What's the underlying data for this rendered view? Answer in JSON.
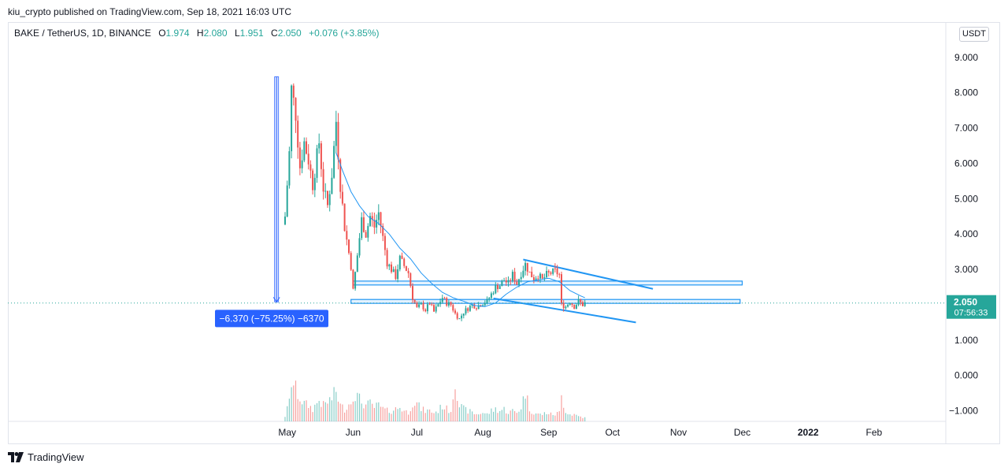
{
  "header": {
    "published": "kiu_crypto published on TradingView.com, Sep 18, 2021 16:03 UTC"
  },
  "legend": {
    "symbol": "BAKE / TetherUS, 1D, BINANCE",
    "open_key": "O",
    "open": "1.974",
    "high_key": "H",
    "high": "2.080",
    "low_key": "L",
    "low": "1.951",
    "close_key": "C",
    "close": "2.050",
    "change": "+0.076 (+3.85%)"
  },
  "currency_unit": "USDT",
  "footer": {
    "brand": "TradingView"
  },
  "colors": {
    "up": "#26a69a",
    "down": "#ef5350",
    "drawing": "#2196f3",
    "measure": "#2962ff",
    "ma": "#2196f3",
    "grid": "#e0e3eb",
    "price_tag": "#26a69a"
  },
  "chart_data": {
    "type": "candlestick",
    "symbol": "BAKE / TetherUS",
    "interval": "1D",
    "exchange": "BINANCE",
    "y_ticks": [
      "9.000",
      "8.000",
      "7.000",
      "6.000",
      "5.000",
      "4.000",
      "3.000",
      "2.000",
      "1.000",
      "0.000",
      "−1.000"
    ],
    "y_tick_values": [
      9,
      8,
      7,
      6,
      5,
      4,
      3,
      2,
      1,
      0,
      -1
    ],
    "ylim": [
      -1.3,
      10.0
    ],
    "x_ticks": [
      "May",
      "Jun",
      "Jul",
      "Aug",
      "Sep",
      "Oct",
      "Nov",
      "Dec",
      "2022",
      "Feb"
    ],
    "x_tick_dates": [
      "2021-05-01",
      "2021-06-01",
      "2021-07-01",
      "2021-08-01",
      "2021-09-01",
      "2021-10-01",
      "2021-11-01",
      "2021-12-01",
      "2022-01-01",
      "2022-02-01"
    ],
    "first_candle_date": "2021-04-30",
    "last_price": "2.050",
    "countdown": "07:56:33",
    "close_path": [
      {
        "date": "2021-04-30",
        "value": 4.5
      },
      {
        "date": "2021-05-02",
        "value": 6.3
      },
      {
        "date": "2021-05-03",
        "value": 8.1
      },
      {
        "date": "2021-05-05",
        "value": 7.4
      },
      {
        "date": "2021-05-07",
        "value": 5.9
      },
      {
        "date": "2021-05-09",
        "value": 6.6
      },
      {
        "date": "2021-05-11",
        "value": 6.1
      },
      {
        "date": "2021-05-13",
        "value": 5.4
      },
      {
        "date": "2021-05-16",
        "value": 6.6
      },
      {
        "date": "2021-05-18",
        "value": 5.3
      },
      {
        "date": "2021-05-20",
        "value": 4.8
      },
      {
        "date": "2021-05-22",
        "value": 5.7
      },
      {
        "date": "2021-05-24",
        "value": 7.2
      },
      {
        "date": "2021-05-26",
        "value": 5.4
      },
      {
        "date": "2021-05-28",
        "value": 4.2
      },
      {
        "date": "2021-05-31",
        "value": 3.1
      },
      {
        "date": "2021-06-01",
        "value": 2.4
      },
      {
        "date": "2021-06-03",
        "value": 3.4
      },
      {
        "date": "2021-06-05",
        "value": 4.4
      },
      {
        "date": "2021-06-07",
        "value": 4.0
      },
      {
        "date": "2021-06-09",
        "value": 4.5
      },
      {
        "date": "2021-06-11",
        "value": 4.2
      },
      {
        "date": "2021-06-13",
        "value": 4.6
      },
      {
        "date": "2021-06-15",
        "value": 3.9
      },
      {
        "date": "2021-06-17",
        "value": 3.2
      },
      {
        "date": "2021-06-19",
        "value": 3.0
      },
      {
        "date": "2021-06-21",
        "value": 2.8
      },
      {
        "date": "2021-06-23",
        "value": 3.3
      },
      {
        "date": "2021-06-25",
        "value": 3.1
      },
      {
        "date": "2021-06-27",
        "value": 2.9
      },
      {
        "date": "2021-06-29",
        "value": 2.2
      },
      {
        "date": "2021-07-01",
        "value": 1.9
      },
      {
        "date": "2021-07-03",
        "value": 2.0
      },
      {
        "date": "2021-07-05",
        "value": 1.85
      },
      {
        "date": "2021-07-07",
        "value": 2.05
      },
      {
        "date": "2021-07-09",
        "value": 1.8
      },
      {
        "date": "2021-07-11",
        "value": 2.0
      },
      {
        "date": "2021-07-13",
        "value": 2.2
      },
      {
        "date": "2021-07-15",
        "value": 2.05
      },
      {
        "date": "2021-07-17",
        "value": 2.0
      },
      {
        "date": "2021-07-19",
        "value": 1.75
      },
      {
        "date": "2021-07-21",
        "value": 1.6
      },
      {
        "date": "2021-07-23",
        "value": 1.8
      },
      {
        "date": "2021-07-25",
        "value": 1.9
      },
      {
        "date": "2021-07-27",
        "value": 2.0
      },
      {
        "date": "2021-07-29",
        "value": 1.95
      },
      {
        "date": "2021-08-01",
        "value": 2.05
      },
      {
        "date": "2021-08-03",
        "value": 2.1
      },
      {
        "date": "2021-08-05",
        "value": 2.3
      },
      {
        "date": "2021-08-07",
        "value": 2.5
      },
      {
        "date": "2021-08-09",
        "value": 2.55
      },
      {
        "date": "2021-08-11",
        "value": 2.7
      },
      {
        "date": "2021-08-13",
        "value": 2.6
      },
      {
        "date": "2021-08-15",
        "value": 2.85
      },
      {
        "date": "2021-08-17",
        "value": 2.6
      },
      {
        "date": "2021-08-19",
        "value": 2.9
      },
      {
        "date": "2021-08-21",
        "value": 3.15
      },
      {
        "date": "2021-08-23",
        "value": 2.9
      },
      {
        "date": "2021-08-25",
        "value": 2.75
      },
      {
        "date": "2021-08-27",
        "value": 2.85
      },
      {
        "date": "2021-08-29",
        "value": 2.7
      },
      {
        "date": "2021-08-31",
        "value": 2.85
      },
      {
        "date": "2021-09-02",
        "value": 2.9
      },
      {
        "date": "2021-09-04",
        "value": 2.95
      },
      {
        "date": "2021-09-06",
        "value": 2.85
      },
      {
        "date": "2021-09-07",
        "value": 2.0
      },
      {
        "date": "2021-09-09",
        "value": 1.95
      },
      {
        "date": "2021-09-11",
        "value": 2.1
      },
      {
        "date": "2021-09-13",
        "value": 1.95
      },
      {
        "date": "2021-09-15",
        "value": 2.1
      },
      {
        "date": "2021-09-17",
        "value": 2.0
      },
      {
        "date": "2021-09-18",
        "value": 2.05
      }
    ],
    "volume_path": [
      {
        "date": "2021-04-30",
        "value": 0.15
      },
      {
        "date": "2021-05-02",
        "value": 0.55
      },
      {
        "date": "2021-05-03",
        "value": 1.15
      },
      {
        "date": "2021-05-05",
        "value": 0.9
      },
      {
        "date": "2021-05-07",
        "value": 0.65
      },
      {
        "date": "2021-05-09",
        "value": 0.5
      },
      {
        "date": "2021-05-11",
        "value": 0.45
      },
      {
        "date": "2021-05-13",
        "value": 0.35
      },
      {
        "date": "2021-05-16",
        "value": 0.6
      },
      {
        "date": "2021-05-18",
        "value": 0.45
      },
      {
        "date": "2021-05-20",
        "value": 0.55
      },
      {
        "date": "2021-05-22",
        "value": 0.65
      },
      {
        "date": "2021-05-24",
        "value": 0.85
      },
      {
        "date": "2021-05-26",
        "value": 0.45
      },
      {
        "date": "2021-05-28",
        "value": 0.35
      },
      {
        "date": "2021-05-31",
        "value": 0.55
      },
      {
        "date": "2021-06-01",
        "value": 0.8
      },
      {
        "date": "2021-06-03",
        "value": 0.7
      },
      {
        "date": "2021-06-05",
        "value": 0.55
      },
      {
        "date": "2021-06-07",
        "value": 0.45
      },
      {
        "date": "2021-06-09",
        "value": 0.5
      },
      {
        "date": "2021-06-11",
        "value": 0.4
      },
      {
        "date": "2021-06-13",
        "value": 0.45
      },
      {
        "date": "2021-06-15",
        "value": 0.35
      },
      {
        "date": "2021-06-17",
        "value": 0.3
      },
      {
        "date": "2021-06-19",
        "value": 0.3
      },
      {
        "date": "2021-06-21",
        "value": 0.35
      },
      {
        "date": "2021-06-23",
        "value": 0.4
      },
      {
        "date": "2021-06-25",
        "value": 0.3
      },
      {
        "date": "2021-06-27",
        "value": 0.25
      },
      {
        "date": "2021-06-29",
        "value": 0.55
      },
      {
        "date": "2021-07-01",
        "value": 0.5
      },
      {
        "date": "2021-07-03",
        "value": 0.35
      },
      {
        "date": "2021-07-05",
        "value": 0.3
      },
      {
        "date": "2021-07-07",
        "value": 0.3
      },
      {
        "date": "2021-07-09",
        "value": 0.25
      },
      {
        "date": "2021-07-11",
        "value": 0.3
      },
      {
        "date": "2021-07-13",
        "value": 0.45
      },
      {
        "date": "2021-07-15",
        "value": 0.35
      },
      {
        "date": "2021-07-17",
        "value": 0.3
      },
      {
        "date": "2021-07-19",
        "value": 1.2
      },
      {
        "date": "2021-07-21",
        "value": 0.45
      },
      {
        "date": "2021-07-23",
        "value": 0.35
      },
      {
        "date": "2021-07-25",
        "value": 0.3
      },
      {
        "date": "2021-07-27",
        "value": 0.25
      },
      {
        "date": "2021-07-29",
        "value": 0.2
      },
      {
        "date": "2021-08-01",
        "value": 0.25
      },
      {
        "date": "2021-08-03",
        "value": 0.2
      },
      {
        "date": "2021-08-05",
        "value": 0.3
      },
      {
        "date": "2021-08-07",
        "value": 0.35
      },
      {
        "date": "2021-08-09",
        "value": 0.3
      },
      {
        "date": "2021-08-11",
        "value": 0.35
      },
      {
        "date": "2021-08-13",
        "value": 0.25
      },
      {
        "date": "2021-08-15",
        "value": 0.3
      },
      {
        "date": "2021-08-17",
        "value": 0.25
      },
      {
        "date": "2021-08-19",
        "value": 0.4
      },
      {
        "date": "2021-08-21",
        "value": 0.85
      },
      {
        "date": "2021-08-23",
        "value": 0.35
      },
      {
        "date": "2021-08-25",
        "value": 0.25
      },
      {
        "date": "2021-08-27",
        "value": 0.2
      },
      {
        "date": "2021-08-29",
        "value": 0.2
      },
      {
        "date": "2021-08-31",
        "value": 0.25
      },
      {
        "date": "2021-09-02",
        "value": 0.2
      },
      {
        "date": "2021-09-04",
        "value": 0.2
      },
      {
        "date": "2021-09-06",
        "value": 0.25
      },
      {
        "date": "2021-09-07",
        "value": 0.7
      },
      {
        "date": "2021-09-09",
        "value": 0.3
      },
      {
        "date": "2021-09-11",
        "value": 0.2
      },
      {
        "date": "2021-09-13",
        "value": 0.2
      },
      {
        "date": "2021-09-15",
        "value": 0.15
      },
      {
        "date": "2021-09-17",
        "value": 0.12
      },
      {
        "date": "2021-09-18",
        "value": 0.1
      }
    ],
    "moving_average": [
      {
        "date": "2021-05-24",
        "value": 6.3
      },
      {
        "date": "2021-05-27",
        "value": 5.8
      },
      {
        "date": "2021-05-31",
        "value": 5.2
      },
      {
        "date": "2021-06-04",
        "value": 4.8
      },
      {
        "date": "2021-06-08",
        "value": 4.5
      },
      {
        "date": "2021-06-13",
        "value": 4.3
      },
      {
        "date": "2021-06-18",
        "value": 4.0
      },
      {
        "date": "2021-06-23",
        "value": 3.6
      },
      {
        "date": "2021-06-28",
        "value": 3.3
      },
      {
        "date": "2021-07-03",
        "value": 2.9
      },
      {
        "date": "2021-07-08",
        "value": 2.6
      },
      {
        "date": "2021-07-13",
        "value": 2.35
      },
      {
        "date": "2021-07-18",
        "value": 2.2
      },
      {
        "date": "2021-07-23",
        "value": 2.1
      },
      {
        "date": "2021-07-28",
        "value": 1.98
      },
      {
        "date": "2021-08-02",
        "value": 1.95
      },
      {
        "date": "2021-08-07",
        "value": 2.05
      },
      {
        "date": "2021-08-12",
        "value": 2.3
      },
      {
        "date": "2021-08-17",
        "value": 2.5
      },
      {
        "date": "2021-08-22",
        "value": 2.65
      },
      {
        "date": "2021-08-27",
        "value": 2.7
      },
      {
        "date": "2021-09-01",
        "value": 2.75
      },
      {
        "date": "2021-09-06",
        "value": 2.65
      },
      {
        "date": "2021-09-11",
        "value": 2.4
      },
      {
        "date": "2021-09-16",
        "value": 2.25
      },
      {
        "date": "2021-09-18",
        "value": 2.2
      }
    ],
    "drawings": {
      "zone_upper": {
        "date_start": "2021-06-01",
        "date_end": "2021-12-01",
        "y_top": 2.67,
        "y_bottom": 2.56
      },
      "zone_lower": {
        "date_start": "2021-05-31",
        "date_end": "2021-11-30",
        "y_top": 2.15,
        "y_bottom": 2.04
      },
      "trendline_upper": [
        {
          "date": "2021-08-20",
          "value": 3.28
        },
        {
          "date": "2021-10-20",
          "value": 2.45
        }
      ],
      "trendline_lower": [
        {
          "date": "2021-08-06",
          "value": 2.18
        },
        {
          "date": "2021-10-12",
          "value": 1.5
        }
      ],
      "measure": {
        "date": "2021-04-26",
        "from": 8.45,
        "to": 2.08
      },
      "measure_label": "−6.370 (−75.25%) −6370"
    }
  }
}
